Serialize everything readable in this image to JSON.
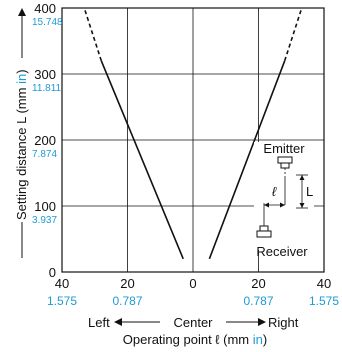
{
  "colors": {
    "accent": "#1e9ad6",
    "axis": "#111111",
    "grid": "#111111"
  },
  "chart_data": {
    "type": "line",
    "ylabel_main": "Setting distance L (mm ",
    "ylabel_unit": "in",
    "ylabel_close": ")",
    "xlabel_main": "Operating point ℓ (mm ",
    "xlabel_unit": "in",
    "xlabel_close": ")",
    "x_ticks_mm": [
      "40",
      "20",
      "0",
      "20",
      "40"
    ],
    "x_ticks_in": [
      "1.575",
      "0.787",
      "",
      "0.787",
      "1.575"
    ],
    "y_ticks_mm": [
      "0",
      "100",
      "200",
      "300",
      "400"
    ],
    "y_ticks_in": [
      "",
      "3.937",
      "7.874",
      "11.811",
      "15.748"
    ],
    "direction_labels": {
      "left": "Left",
      "center": "Center",
      "right": "Right"
    },
    "inset": {
      "emitter": "Emitter",
      "receiver": "Receiver",
      "l_symbol": "ℓ",
      "L_symbol": "L"
    },
    "xlim": [
      -40,
      40
    ],
    "ylim": [
      0,
      400
    ],
    "grid": true,
    "series": [
      {
        "style": "solid",
        "points": [
          [
            -3,
            20
          ],
          [
            -28,
            320
          ]
        ]
      },
      {
        "style": "dashed",
        "points": [
          [
            -28,
            320
          ],
          [
            -33,
            397
          ]
        ]
      },
      {
        "style": "solid",
        "points": [
          [
            5,
            20
          ],
          [
            28,
            320
          ]
        ]
      },
      {
        "style": "dashed",
        "points": [
          [
            28,
            320
          ],
          [
            33,
            397
          ]
        ]
      }
    ]
  }
}
